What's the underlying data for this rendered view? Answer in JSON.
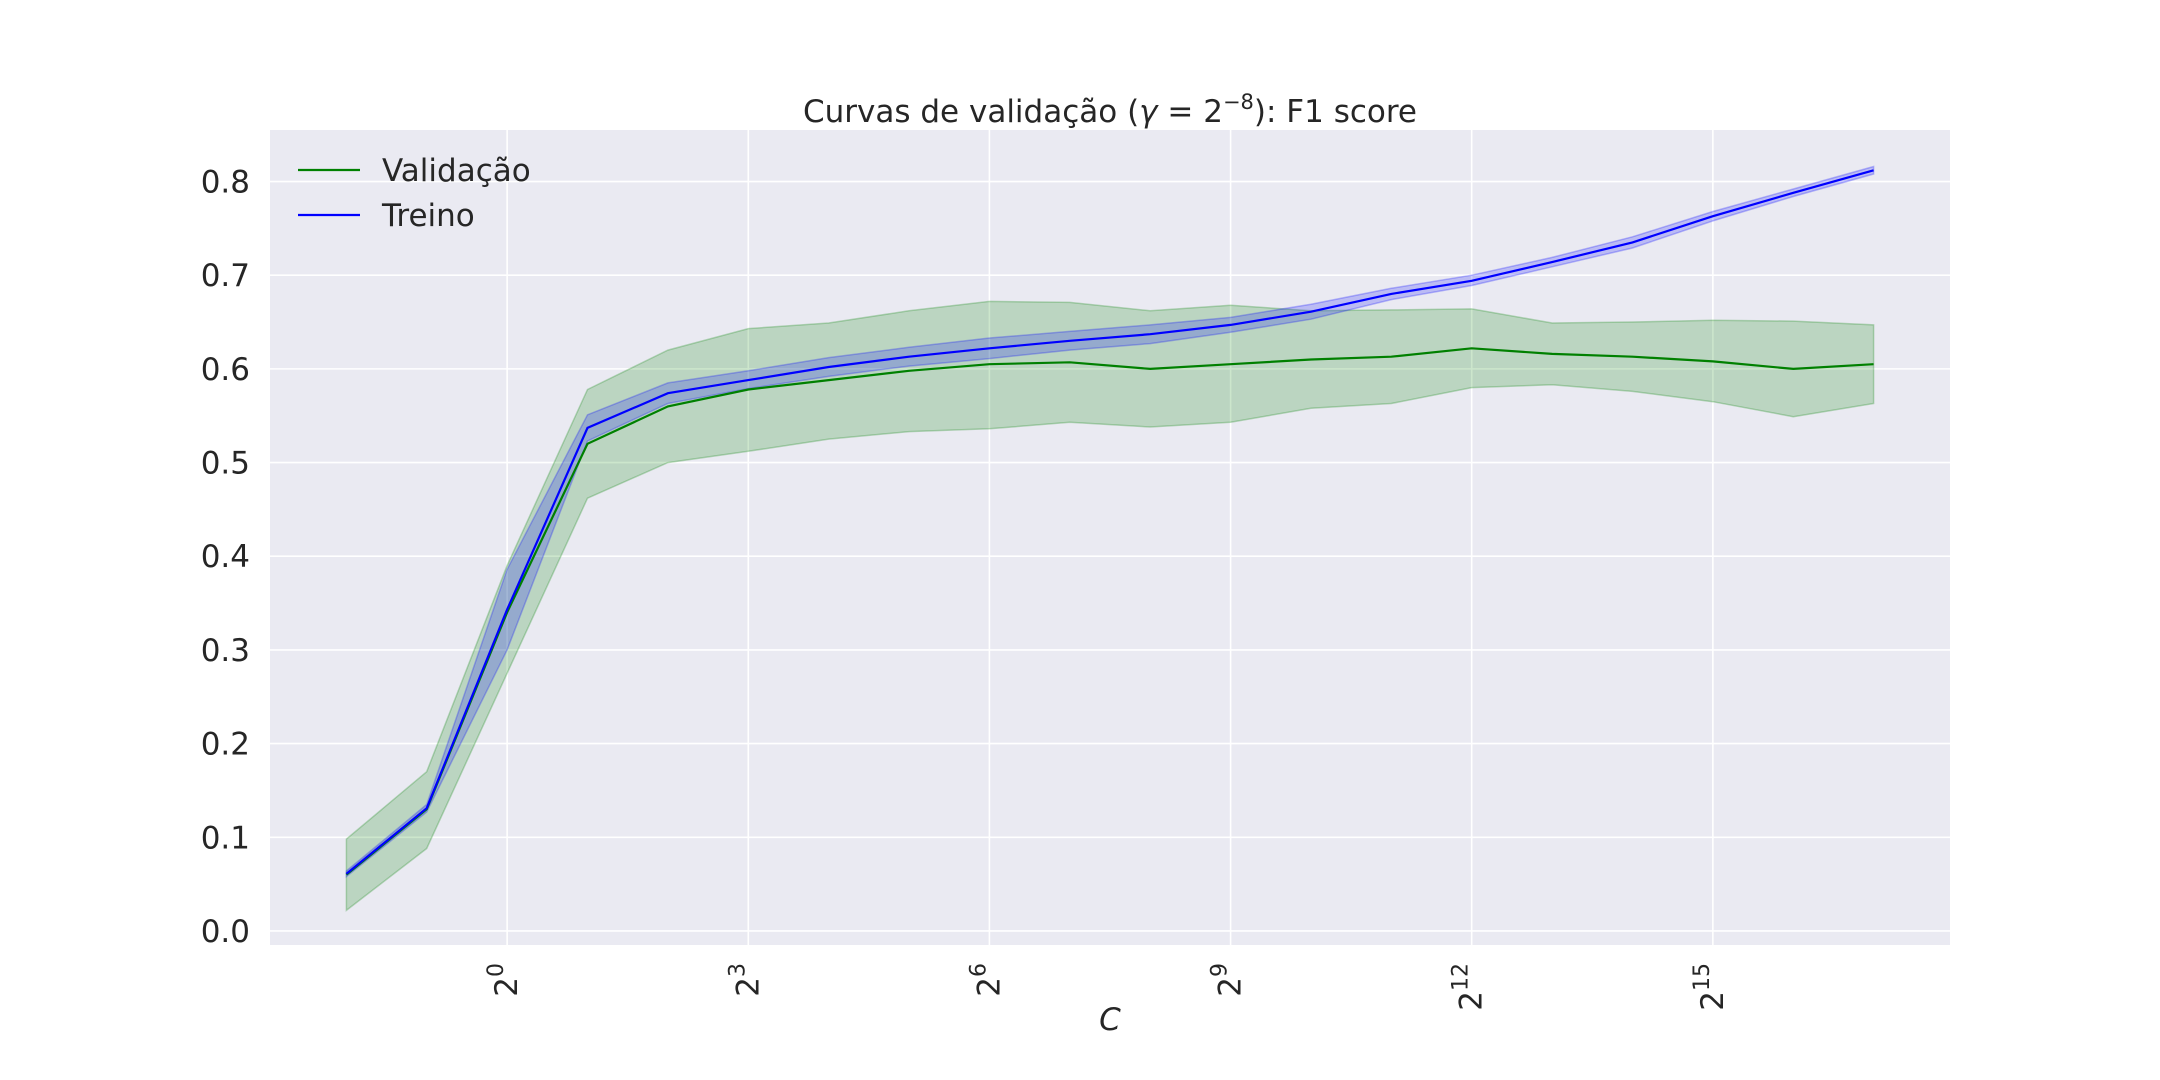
{
  "chart_data": {
    "type": "line",
    "title_prefix": "Curvas de validação (",
    "title_gamma": "γ",
    "title_eq": " = 2",
    "title_exp": "−8",
    "title_suffix": "): F1 score",
    "xlabel": "C",
    "x_scale": "log2",
    "x_exponents": [
      -2,
      -1,
      0,
      1,
      2,
      3,
      4,
      5,
      6,
      7,
      8,
      9,
      10,
      11,
      12,
      13,
      14,
      15,
      16,
      17
    ],
    "x_ticks": [
      0,
      3,
      6,
      9,
      12,
      15
    ],
    "x_tick_base": "2",
    "xlim_exponent": [
      -2.95,
      17.95
    ],
    "ylim": [
      -0.015,
      0.855
    ],
    "y_ticks": [
      "0.0",
      "0.1",
      "0.2",
      "0.3",
      "0.4",
      "0.5",
      "0.6",
      "0.7",
      "0.8"
    ],
    "grid": true,
    "legend_position": "top-left",
    "series": [
      {
        "name": "Validação",
        "color": "#008000",
        "values": [
          0.06,
          0.13,
          0.34,
          0.52,
          0.56,
          0.578,
          0.588,
          0.598,
          0.605,
          0.607,
          0.6,
          0.605,
          0.61,
          0.613,
          0.622,
          0.616,
          0.613,
          0.608,
          0.6,
          0.605
        ],
        "lower": [
          0.022,
          0.088,
          0.275,
          0.462,
          0.5,
          0.512,
          0.525,
          0.533,
          0.536,
          0.543,
          0.538,
          0.543,
          0.558,
          0.563,
          0.58,
          0.583,
          0.576,
          0.565,
          0.549,
          0.563
        ],
        "upper": [
          0.098,
          0.17,
          0.39,
          0.578,
          0.62,
          0.643,
          0.649,
          0.662,
          0.672,
          0.671,
          0.662,
          0.668,
          0.662,
          0.663,
          0.664,
          0.649,
          0.65,
          0.652,
          0.651,
          0.647
        ]
      },
      {
        "name": "Treino",
        "color": "#0000ff",
        "values": [
          0.061,
          0.131,
          0.343,
          0.537,
          0.574,
          0.588,
          0.602,
          0.613,
          0.622,
          0.63,
          0.637,
          0.647,
          0.661,
          0.68,
          0.694,
          0.714,
          0.735,
          0.763,
          0.788,
          0.812
        ],
        "lower": [
          0.058,
          0.127,
          0.3,
          0.523,
          0.563,
          0.579,
          0.592,
          0.603,
          0.611,
          0.62,
          0.627,
          0.639,
          0.653,
          0.674,
          0.689,
          0.709,
          0.729,
          0.758,
          0.784,
          0.808
        ],
        "upper": [
          0.064,
          0.135,
          0.386,
          0.551,
          0.585,
          0.598,
          0.612,
          0.623,
          0.633,
          0.64,
          0.647,
          0.655,
          0.669,
          0.686,
          0.7,
          0.719,
          0.741,
          0.768,
          0.792,
          0.816
        ]
      }
    ]
  }
}
